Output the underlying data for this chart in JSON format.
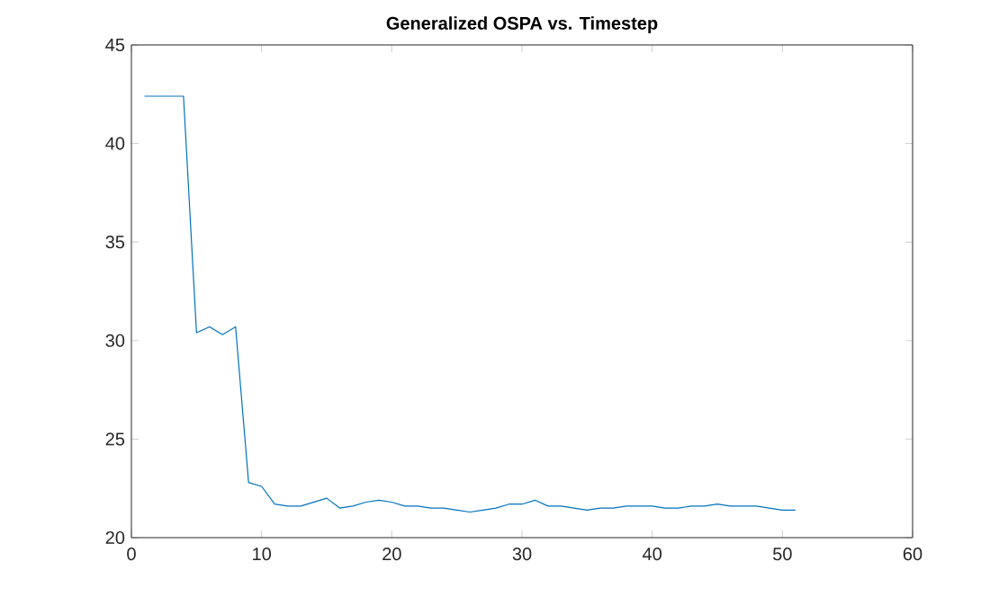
{
  "chart_data": {
    "type": "line",
    "title": "Generalized OSPA vs. Timestep",
    "x": [
      1,
      2,
      3,
      4,
      5,
      6,
      7,
      8,
      9,
      10,
      11,
      12,
      13,
      14,
      15,
      16,
      17,
      18,
      19,
      20,
      21,
      22,
      23,
      24,
      25,
      26,
      27,
      28,
      29,
      30,
      31,
      32,
      33,
      34,
      35,
      36,
      37,
      38,
      39,
      40,
      41,
      42,
      43,
      44,
      45,
      46,
      47,
      48,
      49,
      50,
      51
    ],
    "series": [
      {
        "color": "#0072bd",
        "values": [
          42.4,
          42.4,
          42.4,
          42.4,
          30.4,
          30.7,
          30.3,
          30.7,
          22.8,
          22.6,
          21.7,
          21.6,
          21.6,
          21.8,
          22.0,
          21.5,
          21.6,
          21.8,
          21.9,
          21.8,
          21.6,
          21.6,
          21.5,
          21.5,
          21.4,
          21.3,
          21.4,
          21.5,
          21.7,
          21.7,
          21.9,
          21.6,
          21.6,
          21.5,
          21.4,
          21.5,
          21.5,
          21.6,
          21.6,
          21.6,
          21.5,
          21.5,
          21.6,
          21.6,
          21.7,
          21.6,
          21.6,
          21.6,
          21.5,
          21.4,
          21.4
        ]
      }
    ],
    "xlim": [
      0,
      60
    ],
    "ylim": [
      20,
      45
    ],
    "xticks": [
      0,
      10,
      20,
      30,
      40,
      50,
      60
    ],
    "yticks": [
      20,
      25,
      30,
      35,
      40,
      45
    ],
    "grid": false,
    "marker": "none",
    "line_style": "solid"
  }
}
